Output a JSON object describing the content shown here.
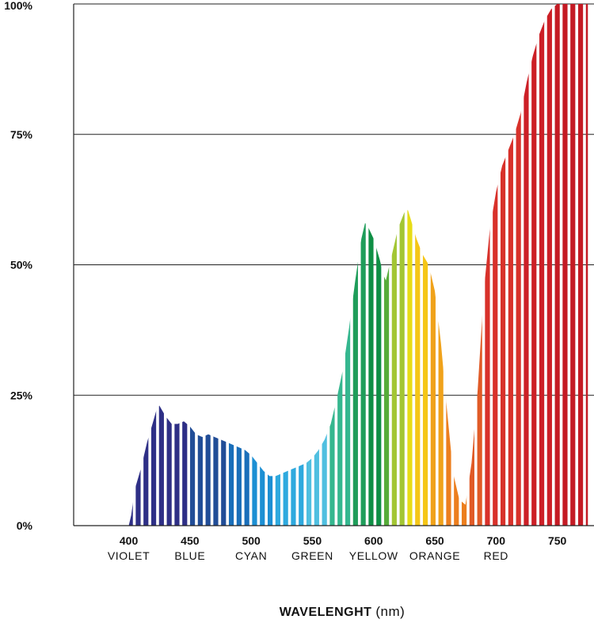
{
  "chart_data": {
    "type": "area",
    "xlabel": "WAVELENGHT",
    "xlabel_unit": "(nm)",
    "ylabel": "",
    "xlim": [
      355,
      780
    ],
    "ylim": [
      0,
      100
    ],
    "y_ticks": [
      {
        "value": 0,
        "label": "0%"
      },
      {
        "value": 25,
        "label": "25%"
      },
      {
        "value": 50,
        "label": "50%"
      },
      {
        "value": 75,
        "label": "75%"
      },
      {
        "value": 100,
        "label": "100%"
      }
    ],
    "x_ticks": [
      {
        "value": 400,
        "label": "400",
        "name": "VIOLET"
      },
      {
        "value": 450,
        "label": "450",
        "name": "BLUE"
      },
      {
        "value": 500,
        "label": "500",
        "name": "CYAN"
      },
      {
        "value": 550,
        "label": "550",
        "name": "GREEN"
      },
      {
        "value": 600,
        "label": "600",
        "name": "YELLOW"
      },
      {
        "value": 650,
        "label": "650",
        "name": "ORANGE"
      },
      {
        "value": 700,
        "label": "700",
        "name": "RED"
      },
      {
        "value": 750,
        "label": "750",
        "name": ""
      }
    ],
    "grid": "horizontal",
    "fill_style": "vertical rainbow stripes",
    "x": [
      400,
      402,
      405,
      410,
      415,
      420,
      423,
      425,
      430,
      435,
      440,
      445,
      450,
      455,
      460,
      465,
      470,
      475,
      480,
      485,
      490,
      495,
      500,
      505,
      510,
      515,
      520,
      525,
      530,
      535,
      540,
      545,
      550,
      555,
      560,
      565,
      570,
      575,
      580,
      585,
      590,
      593,
      595,
      600,
      605,
      608,
      610,
      615,
      620,
      625,
      628,
      630,
      635,
      640,
      645,
      650,
      655,
      660,
      665,
      670,
      675,
      680,
      685,
      690,
      695,
      700,
      705,
      710,
      715,
      720,
      725,
      730,
      735,
      740,
      745,
      750,
      755,
      760,
      765,
      770,
      775
    ],
    "values": [
      0,
      2,
      7,
      11,
      16,
      20,
      22.5,
      23,
      21,
      19.5,
      19.5,
      20,
      19,
      17.5,
      17,
      17.5,
      17,
      16.5,
      16,
      15.5,
      15,
      14.5,
      13.5,
      12,
      10.5,
      9.5,
      9.5,
      10,
      10.5,
      11,
      11.5,
      12,
      13,
      14.5,
      16.5,
      19.5,
      24.5,
      30,
      38,
      47,
      55,
      58,
      57.5,
      55,
      51,
      48,
      47,
      52,
      57,
      60,
      60.5,
      59,
      55,
      52,
      50,
      45,
      35,
      22,
      10,
      5,
      4,
      12,
      26,
      45,
      57,
      64,
      69,
      72,
      75,
      79,
      85,
      90,
      94,
      97,
      99,
      100,
      100,
      100,
      100,
      100,
      100
    ],
    "band_colors": [
      {
        "from": 400,
        "color": "#2e2f86"
      },
      {
        "from": 450,
        "color": "#214d97"
      },
      {
        "from": 480,
        "color": "#1a6fba"
      },
      {
        "from": 500,
        "color": "#1c8fd3"
      },
      {
        "from": 520,
        "color": "#2ea9de"
      },
      {
        "from": 545,
        "color": "#4fbfe0"
      },
      {
        "from": 565,
        "color": "#35b78f"
      },
      {
        "from": 580,
        "color": "#1f9d5a"
      },
      {
        "from": 595,
        "color": "#0f8f45"
      },
      {
        "from": 605,
        "color": "#56ac3a"
      },
      {
        "from": 615,
        "color": "#a3c634"
      },
      {
        "from": 625,
        "color": "#e7dc16"
      },
      {
        "from": 635,
        "color": "#f5c617"
      },
      {
        "from": 645,
        "color": "#f0a21a"
      },
      {
        "from": 660,
        "color": "#ec7e1e"
      },
      {
        "from": 675,
        "color": "#e05a26"
      },
      {
        "from": 690,
        "color": "#d8312a"
      },
      {
        "from": 720,
        "color": "#cc1f26"
      },
      {
        "from": 750,
        "color": "#c41b24"
      }
    ]
  }
}
